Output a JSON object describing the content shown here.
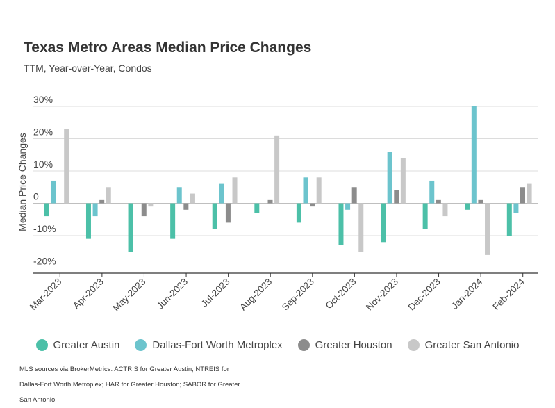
{
  "title": "Texas Metro Areas Median Price Changes",
  "subtitle": "TTM, Year-over-Year, Condos",
  "source": "MLS sources via BrokerMetrics: ACTRIS for Greater Austin; NTREIS for Dallas-Fort Worth Metroplex; HAR for Greater Houston; SABOR for Greater San Antonio",
  "chart_data": {
    "type": "bar",
    "title": "Texas Metro Areas Median Price Changes",
    "subtitle": "TTM, Year-over-Year, Condos",
    "xlabel": "",
    "ylabel": "Median Price Changes",
    "ylim": [
      -20,
      30
    ],
    "yticks": [
      30,
      20,
      10,
      0,
      -10,
      -20
    ],
    "ytick_labels": [
      "30%",
      "20%",
      "10%",
      "0",
      "-10%",
      "-20%"
    ],
    "grid": true,
    "legend_position": "bottom",
    "categories": [
      "Mar-2023",
      "Apr-2023",
      "May-2023",
      "Jun-2023",
      "Jul-2023",
      "Aug-2023",
      "Sep-2023",
      "Oct-2023",
      "Nov-2023",
      "Dec-2023",
      "Jan-2024",
      "Feb-2024"
    ],
    "series": [
      {
        "name": "Greater Austin",
        "color": "#4cc0a8",
        "values": [
          -4,
          -11,
          -15,
          -11,
          -8,
          -3,
          -6,
          -13,
          -12,
          -8,
          -2,
          -10
        ]
      },
      {
        "name": "Dallas-Fort Worth Metroplex",
        "color": "#6cc4cd",
        "values": [
          7,
          -4,
          0,
          5,
          6,
          0,
          8,
          -2,
          16,
          7,
          30,
          -3
        ]
      },
      {
        "name": "Greater Houston",
        "color": "#8c8c8c",
        "values": [
          0,
          1,
          -4,
          -2,
          -6,
          1,
          -1,
          5,
          4,
          1,
          1,
          5
        ]
      },
      {
        "name": "Greater San Antonio",
        "color": "#c8c8c8",
        "values": [
          23,
          5,
          -1,
          3,
          8,
          21,
          8,
          -15,
          14,
          -4,
          -16,
          6
        ]
      }
    ]
  }
}
